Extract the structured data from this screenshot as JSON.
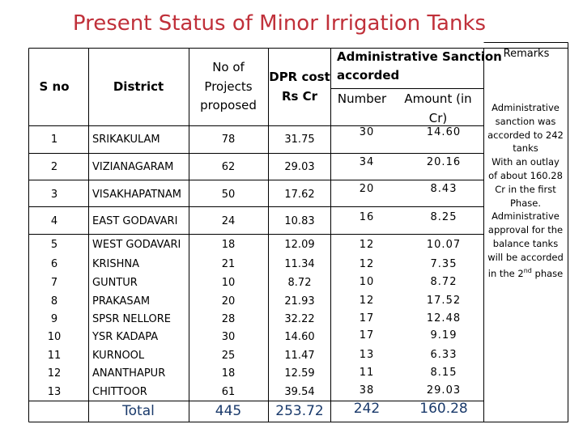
{
  "title": "Present Status of Minor Irrigation Tanks",
  "headers": {
    "sno": "S no",
    "district": "District",
    "projects": [
      "No of",
      "Projects",
      "proposed"
    ],
    "dpr": [
      "DPR cost",
      "Rs Cr"
    ],
    "admin": [
      "Administrative Sanction",
      "accorded"
    ],
    "number": "Number",
    "amount": [
      "Amount (in",
      "Cr)"
    ],
    "remarks": "Remarks"
  },
  "rows": [
    {
      "sno": "1",
      "district": "SRIKAKULAM",
      "projects": "78",
      "dpr": "31.75",
      "number": "30",
      "amount": "14.60"
    },
    {
      "sno": "2",
      "district": "VIZIANAGARAM",
      "projects": "62",
      "dpr": "29.03",
      "number": "34",
      "amount": "20.16"
    },
    {
      "sno": "3",
      "district": "VISAKHAPATNAM",
      "projects": "50",
      "dpr": "17.62",
      "number": "20",
      "amount": "8.43"
    },
    {
      "sno": "4",
      "district": "EAST GODAVARI",
      "projects": "24",
      "dpr": "10.83",
      "number": "16",
      "amount": "8.25"
    },
    {
      "sno": "5",
      "district": "WEST GODAVARI",
      "projects": "18",
      "dpr": "12.09",
      "number": "12",
      "amount": "10.07"
    },
    {
      "sno": "6",
      "district": "KRISHNA",
      "projects": "21",
      "dpr": "11.34",
      "number": "12",
      "amount": "7.35"
    },
    {
      "sno": "7",
      "district": "GUNTUR",
      "projects": "10",
      "dpr": "8.72",
      "number": "10",
      "amount": "8.72"
    },
    {
      "sno": "8",
      "district": "PRAKASAM",
      "projects": "20",
      "dpr": "21.93",
      "number": "12",
      "amount": "17.52"
    },
    {
      "sno": "9",
      "district": "SPSR NELLORE",
      "projects": "28",
      "dpr": "32.22",
      "number": "17",
      "amount": "12.48"
    },
    {
      "sno": "10",
      "district": "YSR KADAPA",
      "projects": "30",
      "dpr": "14.60",
      "number": "17",
      "amount": "9.19"
    },
    {
      "sno": "11",
      "district": "KURNOOL",
      "projects": "25",
      "dpr": "11.47",
      "number": "13",
      "amount": "6.33"
    },
    {
      "sno": "12",
      "district": "ANANTHAPUR",
      "projects": "18",
      "dpr": "12.59",
      "number": "11",
      "amount": "8.15"
    },
    {
      "sno": "13",
      "district": "CHITTOOR",
      "projects": "61",
      "dpr": "39.54",
      "number": "38",
      "amount": "29.03"
    }
  ],
  "total": {
    "label": "Total",
    "projects": "445",
    "dpr": "253.72",
    "number": "242",
    "amount": "160.28"
  },
  "remarks_text": {
    "l1": "Administrative",
    "l2": "sanction was",
    "l3": "accorded to 242",
    "l4": "tanks",
    "l5": "With an outlay",
    "l6": "of about 160.28",
    "l7": "Cr in the first",
    "l8": "Phase.",
    "l9": "Administrative",
    "l10": "approval for the",
    "l11": "balance tanks",
    "l12": "will be accorded",
    "l13_pre": "in the 2",
    "l13_sup": "nd",
    "l13_post": " phase"
  },
  "colors": {
    "title": "#c0303a",
    "total": "#1a3a6b",
    "border": "#000000"
  }
}
